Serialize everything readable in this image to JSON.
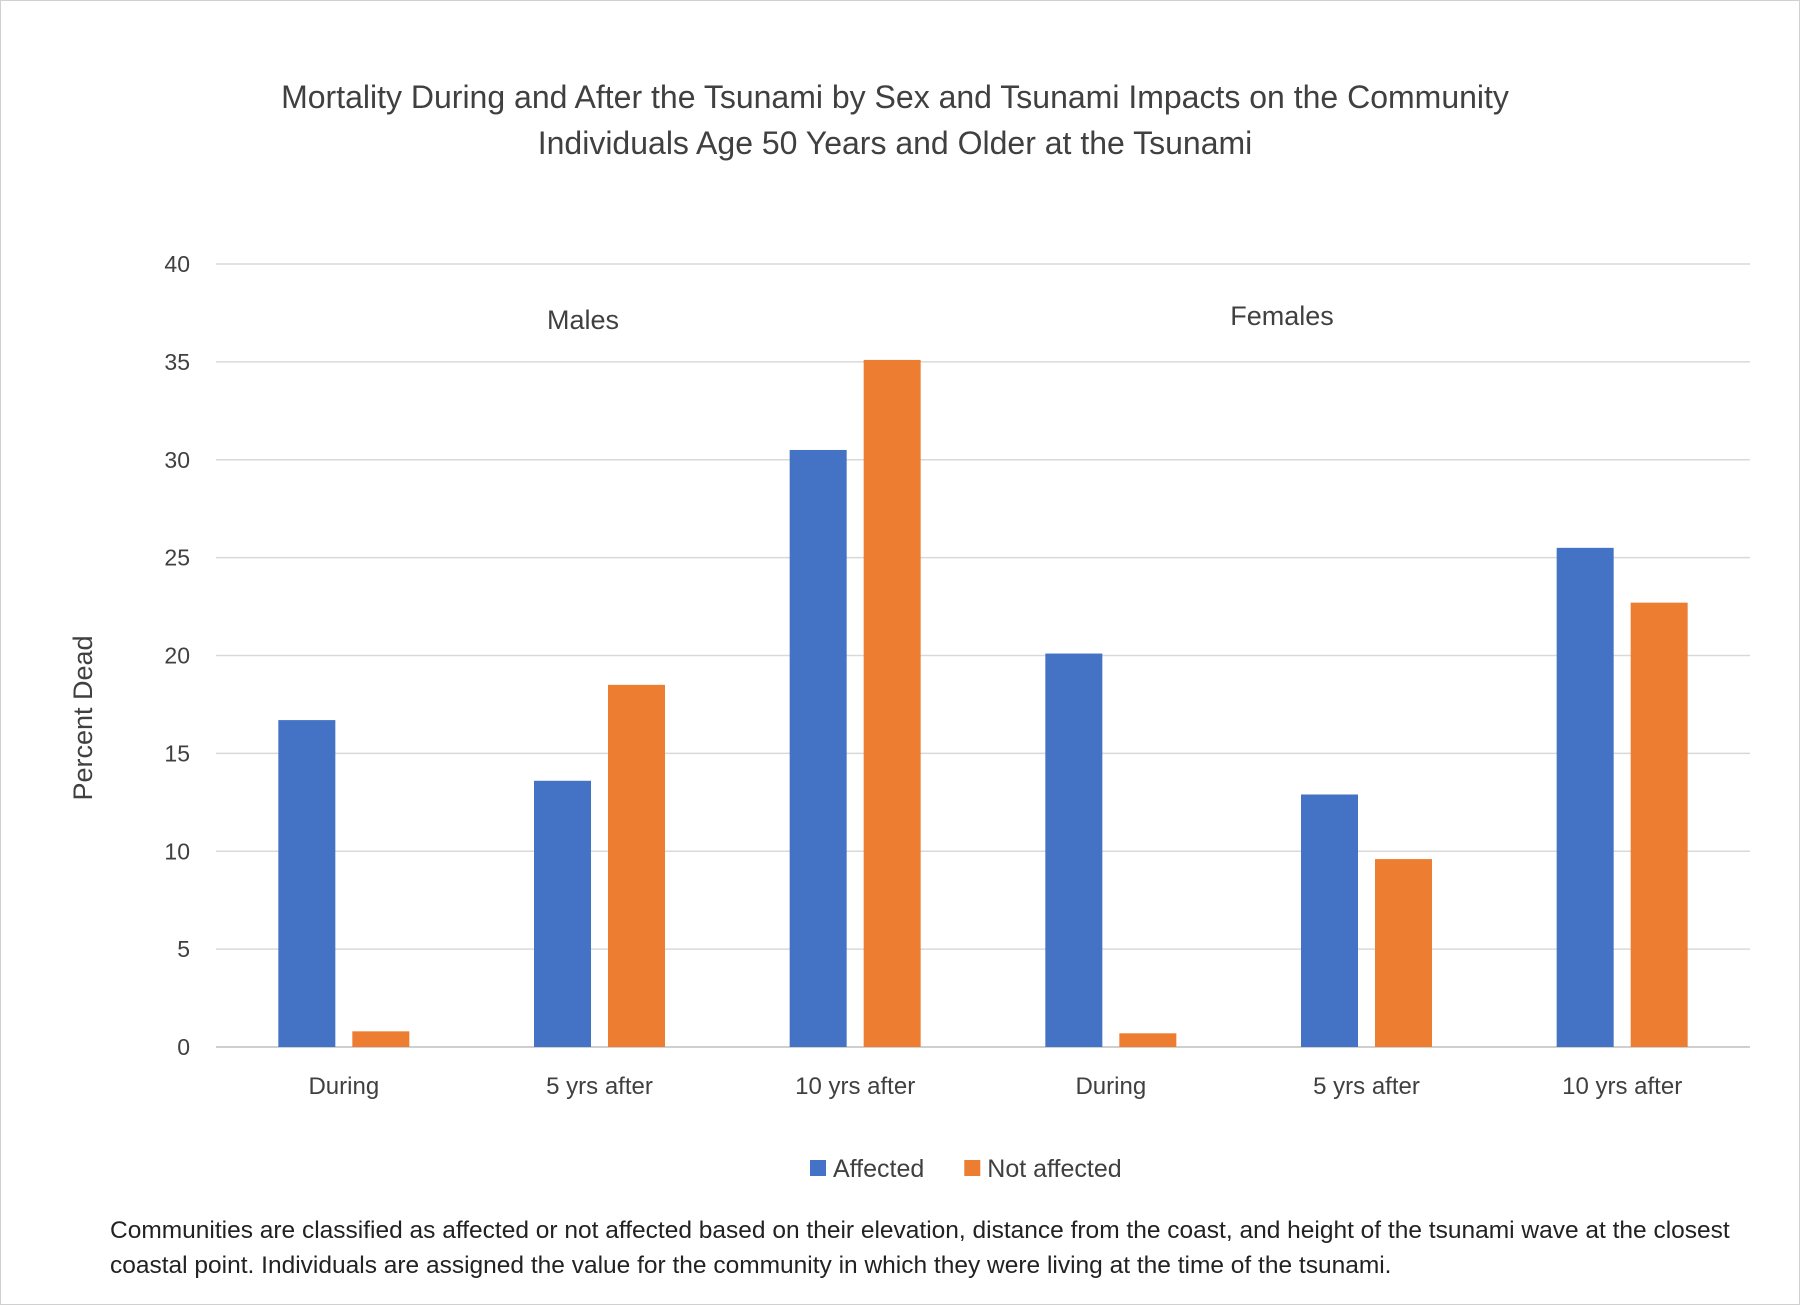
{
  "chart_data": {
    "type": "bar",
    "title": [
      "Mortality During and After the Tsunami by Sex and Tsunami Impacts on the Community",
      "Individuals Age 50 Years and Older at the Tsunami"
    ],
    "ylabel": "Percent  Dead",
    "xlabel": "",
    "ylim": [
      0,
      40
    ],
    "yticks": [
      0,
      5,
      10,
      15,
      20,
      25,
      30,
      35,
      40
    ],
    "grid": true,
    "legend_position": "bottom",
    "categories": [
      "During",
      "5 yrs after",
      "10 yrs after",
      "During",
      "5 yrs after",
      "10 yrs after"
    ],
    "group_annotations": [
      "Males",
      "Females"
    ],
    "series": [
      {
        "name": "Affected",
        "color": "#4472C4",
        "values": [
          16.7,
          13.6,
          30.5,
          20.1,
          12.9,
          25.5
        ]
      },
      {
        "name": "Not affected",
        "color": "#ED7D31",
        "values": [
          0.8,
          18.5,
          35.1,
          0.7,
          9.6,
          22.7
        ]
      }
    ],
    "footnote": "Communities are classified as affected or not affected based on their elevation, distance from the coast, and height of the tsunami wave at the closest coastal point. Individuals are assigned the value for the community in which they were living at the time of the tsunami."
  }
}
